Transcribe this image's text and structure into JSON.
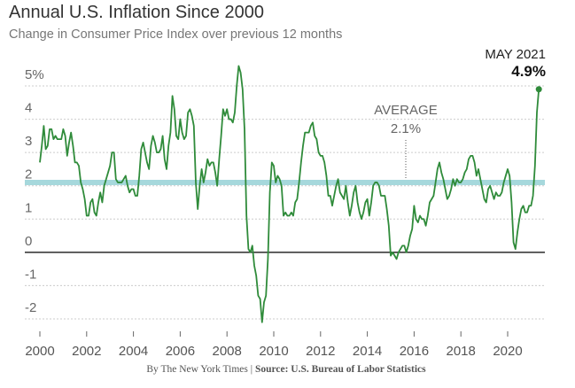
{
  "chart_data": {
    "type": "line",
    "title": "Annual U.S. Inflation Since 2000",
    "subtitle": "Change in Consumer Price Index over previous 12 months",
    "credit": "By The New York Times",
    "source": "Source: U.S. Bureau of Labor Statistics",
    "average": {
      "label": "AVERAGE",
      "value": 2.1,
      "value_label": "2.1%",
      "color": "#a6d8dc"
    },
    "end_label": {
      "date": "MAY 2021",
      "value": 4.9,
      "value_label": "4.9%"
    },
    "xlim": [
      2000,
      2021.333
    ],
    "xticks": [
      2000,
      2002,
      2004,
      2006,
      2008,
      2010,
      2012,
      2014,
      2016,
      2018,
      2020
    ],
    "ylim": [
      -2,
      5
    ],
    "yticks": [
      -2,
      -1,
      0,
      1,
      2,
      3,
      4,
      {
        "value": 5,
        "label": "5%"
      }
    ],
    "grid": true,
    "series": [
      {
        "color": "#2f8b3a",
        "x": [
          2000,
          2000.083,
          2000.167,
          2000.25,
          2000.333,
          2000.417,
          2000.5,
          2000.583,
          2000.667,
          2000.75,
          2000.833,
          2000.917,
          2001,
          2001.083,
          2001.167,
          2001.25,
          2001.333,
          2001.417,
          2001.5,
          2001.583,
          2001.667,
          2001.75,
          2001.833,
          2001.917,
          2002,
          2002.083,
          2002.167,
          2002.25,
          2002.333,
          2002.417,
          2002.5,
          2002.583,
          2002.667,
          2002.75,
          2002.833,
          2002.917,
          2003,
          2003.083,
          2003.167,
          2003.25,
          2003.333,
          2003.417,
          2003.5,
          2003.583,
          2003.667,
          2003.75,
          2003.833,
          2003.917,
          2004,
          2004.083,
          2004.167,
          2004.25,
          2004.333,
          2004.417,
          2004.5,
          2004.583,
          2004.667,
          2004.75,
          2004.833,
          2004.917,
          2005,
          2005.083,
          2005.167,
          2005.25,
          2005.333,
          2005.417,
          2005.5,
          2005.583,
          2005.667,
          2005.75,
          2005.833,
          2005.917,
          2006,
          2006.083,
          2006.167,
          2006.25,
          2006.333,
          2006.417,
          2006.5,
          2006.583,
          2006.667,
          2006.75,
          2006.833,
          2006.917,
          2007,
          2007.083,
          2007.167,
          2007.25,
          2007.333,
          2007.417,
          2007.5,
          2007.583,
          2007.667,
          2007.75,
          2007.833,
          2007.917,
          2008,
          2008.083,
          2008.167,
          2008.25,
          2008.333,
          2008.417,
          2008.5,
          2008.583,
          2008.667,
          2008.75,
          2008.833,
          2008.917,
          2009,
          2009.083,
          2009.167,
          2009.25,
          2009.333,
          2009.417,
          2009.5,
          2009.583,
          2009.667,
          2009.75,
          2009.833,
          2009.917,
          2010,
          2010.083,
          2010.167,
          2010.25,
          2010.333,
          2010.417,
          2010.5,
          2010.583,
          2010.667,
          2010.75,
          2010.833,
          2010.917,
          2011,
          2011.083,
          2011.167,
          2011.25,
          2011.333,
          2011.417,
          2011.5,
          2011.583,
          2011.667,
          2011.75,
          2011.833,
          2011.917,
          2012,
          2012.083,
          2012.167,
          2012.25,
          2012.333,
          2012.417,
          2012.5,
          2012.583,
          2012.667,
          2012.75,
          2012.833,
          2012.917,
          2013,
          2013.083,
          2013.167,
          2013.25,
          2013.333,
          2013.417,
          2013.5,
          2013.583,
          2013.667,
          2013.75,
          2013.833,
          2013.917,
          2014,
          2014.083,
          2014.167,
          2014.25,
          2014.333,
          2014.417,
          2014.5,
          2014.583,
          2014.667,
          2014.75,
          2014.833,
          2014.917,
          2015,
          2015.083,
          2015.167,
          2015.25,
          2015.333,
          2015.417,
          2015.5,
          2015.583,
          2015.667,
          2015.75,
          2015.833,
          2015.917,
          2016,
          2016.083,
          2016.167,
          2016.25,
          2016.333,
          2016.417,
          2016.5,
          2016.583,
          2016.667,
          2016.75,
          2016.833,
          2016.917,
          2017,
          2017.083,
          2017.167,
          2017.25,
          2017.333,
          2017.417,
          2017.5,
          2017.583,
          2017.667,
          2017.75,
          2017.833,
          2017.917,
          2018,
          2018.083,
          2018.167,
          2018.25,
          2018.333,
          2018.417,
          2018.5,
          2018.583,
          2018.667,
          2018.75,
          2018.833,
          2018.917,
          2019,
          2019.083,
          2019.167,
          2019.25,
          2019.333,
          2019.417,
          2019.5,
          2019.583,
          2019.667,
          2019.75,
          2019.833,
          2019.917,
          2020,
          2020.083,
          2020.167,
          2020.25,
          2020.333,
          2020.417,
          2020.5,
          2020.583,
          2020.667,
          2020.75,
          2020.833,
          2020.917,
          2021,
          2021.083,
          2021.167,
          2021.25,
          2021.333
        ],
        "values": [
          2.7,
          3.2,
          3.8,
          3.1,
          3.2,
          3.7,
          3.7,
          3.4,
          3.5,
          3.4,
          3.4,
          3.4,
          3.7,
          3.5,
          2.9,
          3.3,
          3.6,
          3.2,
          2.7,
          2.7,
          2.6,
          2.1,
          1.9,
          1.6,
          1.1,
          1.1,
          1.5,
          1.6,
          1.2,
          1.1,
          1.5,
          1.8,
          1.5,
          2.0,
          2.2,
          2.4,
          2.6,
          3.0,
          3.0,
          2.2,
          2.1,
          2.1,
          2.1,
          2.2,
          2.3,
          2.0,
          1.8,
          1.9,
          1.9,
          1.7,
          1.7,
          2.3,
          3.1,
          3.3,
          3.0,
          2.7,
          2.5,
          3.2,
          3.5,
          3.3,
          3.0,
          3.0,
          3.1,
          3.5,
          2.8,
          2.5,
          3.2,
          3.6,
          4.7,
          4.3,
          3.5,
          3.4,
          4.0,
          3.6,
          3.4,
          3.5,
          4.2,
          4.3,
          4.1,
          3.8,
          2.1,
          1.3,
          2.0,
          2.5,
          2.1,
          2.4,
          2.8,
          2.6,
          2.7,
          2.7,
          2.4,
          2.0,
          2.8,
          3.5,
          4.3,
          4.1,
          4.3,
          4.0,
          4.0,
          3.9,
          4.2,
          5.0,
          5.6,
          5.4,
          4.9,
          3.7,
          1.1,
          0.1,
          0.0,
          0.2,
          -0.4,
          -0.7,
          -1.3,
          -1.4,
          -2.1,
          -1.5,
          -1.3,
          -0.2,
          1.8,
          2.7,
          2.6,
          2.1,
          2.3,
          2.2,
          2.0,
          1.1,
          1.2,
          1.1,
          1.1,
          1.2,
          1.1,
          1.5,
          1.6,
          2.1,
          2.7,
          3.2,
          3.6,
          3.6,
          3.6,
          3.8,
          3.9,
          3.5,
          3.4,
          3.0,
          2.9,
          2.9,
          2.7,
          2.3,
          1.7,
          1.7,
          1.4,
          1.7,
          2.0,
          2.2,
          1.8,
          1.7,
          1.6,
          2.0,
          1.5,
          1.1,
          1.4,
          1.8,
          2.0,
          1.5,
          1.2,
          1.0,
          1.2,
          1.5,
          1.6,
          1.1,
          1.5,
          2.0,
          2.1,
          2.1,
          2.0,
          1.7,
          1.7,
          1.7,
          1.3,
          0.8,
          -0.1,
          0.0,
          -0.1,
          -0.2,
          0.0,
          0.1,
          0.2,
          0.2,
          0.0,
          0.2,
          0.5,
          0.7,
          1.4,
          1.0,
          0.9,
          1.1,
          1.0,
          1.0,
          0.8,
          1.1,
          1.5,
          1.6,
          1.7,
          2.1,
          2.5,
          2.7,
          2.4,
          2.2,
          1.9,
          1.6,
          1.7,
          1.9,
          2.2,
          2.0,
          2.2,
          2.1,
          2.1,
          2.2,
          2.4,
          2.5,
          2.8,
          2.9,
          2.9,
          2.7,
          2.3,
          2.5,
          2.2,
          1.9,
          1.6,
          1.5,
          1.9,
          2.0,
          1.8,
          1.6,
          1.8,
          1.7,
          1.7,
          1.8,
          2.1,
          2.3,
          2.5,
          2.3,
          1.5,
          0.3,
          0.1,
          0.6,
          1.0,
          1.3,
          1.4,
          1.2,
          1.2,
          1.4,
          1.4,
          1.7,
          2.6,
          4.2,
          4.9
        ]
      }
    ]
  }
}
